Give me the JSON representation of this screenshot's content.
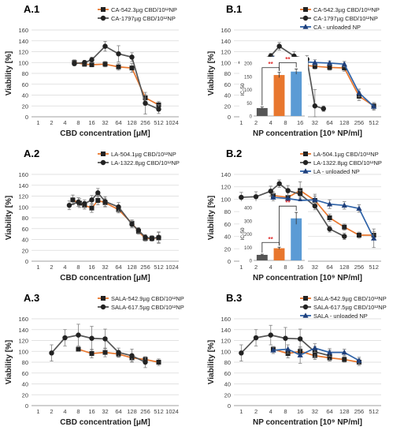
{
  "figure": {
    "colors": {
      "orange": "#E8772E",
      "gray": "#555555",
      "blue": "#2F63A8",
      "err": "#7f7f7f",
      "grid": "#d9d9d9",
      "bar_blue": "#5B9BD5"
    }
  },
  "panels": [
    {
      "id": "A.1",
      "label": "A.1",
      "xlabel": "CBD concentration [μM]",
      "ylabel": "Viability [%]",
      "legend_position": "top-right",
      "chart_data": {
        "type": "line",
        "title": "",
        "xlabel": "CBD concentration [μM]",
        "ylabel": "Viability [%]",
        "x_categories": [
          "1",
          "2",
          "4",
          "8",
          "16",
          "32",
          "64",
          "128",
          "256",
          "512",
          "1024"
        ],
        "ylim": [
          0,
          160
        ],
        "yticks": [
          0,
          20,
          40,
          60,
          80,
          100,
          120,
          140,
          160
        ],
        "x_scale": "log2",
        "series": [
          {
            "name": "CA-542.3µg CBD/10¹²NP",
            "color": "orange",
            "marker": "square",
            "x": [
              6.5,
              11,
              16,
              32,
              64,
              128,
              256,
              512
            ],
            "y": [
              100,
              97,
              96,
              97,
              92,
              90,
              35,
              22
            ],
            "err": [
              5,
              4,
              4,
              5,
              6,
              8,
              6,
              6
            ]
          },
          {
            "name": "CA-1797µg CBD/10¹²NP",
            "color": "gray",
            "marker": "circle",
            "x": [
              6.5,
              11,
              16,
              32,
              64,
              128,
              256,
              512
            ],
            "y": [
              98,
              100,
              105,
              130,
              116,
              110,
              25,
              14
            ],
            "err": [
              4,
              4,
              5,
              9,
              15,
              8,
              20,
              8
            ]
          }
        ]
      },
      "inset": null
    },
    {
      "id": "B.1",
      "label": "B.1",
      "xlabel": "NP concentration [10⁹ NP/ml]",
      "ylabel": "Viability [%]",
      "legend_position": "top-right",
      "chart_data": {
        "type": "line",
        "title": "",
        "xlabel": "NP concentration [10⁹ NP/ml]",
        "ylabel": "Viability [%]",
        "x_categories": [
          "1",
          "2",
          "4",
          "8",
          "16",
          "32",
          "64",
          "128",
          "256",
          "512"
        ],
        "ylim": [
          0,
          160
        ],
        "yticks": [
          0,
          20,
          40,
          60,
          80,
          100,
          120,
          140,
          160
        ],
        "x_scale": "log2",
        "series": [
          {
            "name": "CA-542.3µg CBD/10¹²NP",
            "color": "orange",
            "marker": "square",
            "x": [
              4.5,
              9,
              16,
              32,
              64,
              128,
              256,
              512
            ],
            "y": [
              97,
              95,
              96,
              93,
              91,
              90,
              38,
              20
            ],
            "err": [
              4,
              4,
              6,
              5,
              5,
              6,
              8,
              6
            ]
          },
          {
            "name": "CA-1797µg CBD/10¹²NP",
            "color": "gray",
            "marker": "circle",
            "x": [
              1,
              2,
              4,
              6,
              12,
              22,
              32,
              48
            ],
            "y": [
              100,
              103,
              112,
              130,
              112,
              106,
              20,
              15
            ],
            "err": [
              4,
              4,
              5,
              7,
              8,
              7,
              30,
              5
            ]
          },
          {
            "name": "CA - unloaded NP",
            "color": "blue",
            "marker": "triangle",
            "x": [
              4.5,
              9,
              16,
              32,
              64,
              128,
              256,
              512
            ],
            "y": [
              108,
              104,
              102,
              100,
              99,
              97,
              44,
              19
            ],
            "err": [
              4,
              4,
              5,
              5,
              4,
              5,
              7,
              7
            ]
          }
        ]
      },
      "inset": {
        "ylabel": "IC-50",
        "ylim": [
          0,
          200
        ],
        "yticks": [
          0,
          50,
          100,
          150,
          200
        ],
        "bars": [
          {
            "value": 30,
            "err": 4,
            "color": "gray"
          },
          {
            "value": 155,
            "err": 10,
            "color": "orange"
          },
          {
            "value": 168,
            "err": 10,
            "color": "bar_blue"
          }
        ],
        "sig": [
          "**",
          "**"
        ]
      }
    },
    {
      "id": "A.2",
      "label": "A.2",
      "xlabel": "CBD concentration [μM]",
      "ylabel": "Viability [%]",
      "legend_position": "top-right",
      "chart_data": {
        "type": "line",
        "title": "",
        "xlabel": "CBD concentration [μM]",
        "ylabel": "Viability [%]",
        "x_categories": [
          "1",
          "2",
          "4",
          "8",
          "16",
          "32",
          "64",
          "128",
          "256",
          "512",
          "1024"
        ],
        "ylim": [
          0,
          160
        ],
        "yticks": [
          0,
          20,
          40,
          60,
          80,
          100,
          120,
          140,
          160
        ],
        "x_scale": "log2",
        "series": [
          {
            "name": "LA-504.1µg CBD/10¹²NP",
            "color": "orange",
            "marker": "square",
            "x": [
              6,
              8.5,
              11,
              16,
              22,
              32,
              64,
              128,
              180,
              256,
              360,
              512
            ],
            "y": [
              113,
              107,
              103,
              98,
              112,
              108,
              95,
              70,
              55,
              42,
              42,
              43
            ],
            "err": [
              9,
              8,
              7,
              8,
              8,
              8,
              6,
              6,
              5,
              5,
              5,
              10
            ]
          },
          {
            "name": "LA-1322.8µg CBD/10¹²NP",
            "color": "gray",
            "marker": "circle",
            "x": [
              5,
              8,
              11,
              16,
              22,
              32,
              64,
              128,
              180,
              256,
              360,
              512
            ],
            "y": [
              103,
              109,
              106,
              113,
              126,
              110,
              100,
              68,
              57,
              44,
              42,
              44
            ],
            "err": [
              8,
              8,
              7,
              8,
              8,
              9,
              8,
              6,
              5,
              5,
              5,
              10
            ]
          }
        ]
      },
      "inset": null
    },
    {
      "id": "B.2",
      "label": "B.2",
      "xlabel": "NP concentration [10⁹ NP/ml]",
      "ylabel": "Viability [%]",
      "legend_position": "top-right",
      "chart_data": {
        "type": "line",
        "title": "",
        "xlabel": "NP concentration [10⁹ NP/ml]",
        "ylabel": "Viability [%]",
        "x_categories": [
          "1",
          "2",
          "4",
          "8",
          "16",
          "32",
          "64",
          "128",
          "256",
          "512"
        ],
        "ylim": [
          0,
          140
        ],
        "yticks": [
          0,
          20,
          40,
          60,
          80,
          100,
          120,
          140
        ],
        "x_scale": "log2",
        "series": [
          {
            "name": "LA-504.1µg CBD/10¹²NP",
            "color": "orange",
            "marker": "square",
            "x": [
              4.5,
              9,
              16,
              32,
              64,
              128,
              256,
              512
            ],
            "y": [
              106,
              103,
              114,
              98,
              70,
              55,
              42,
              42
            ],
            "err": [
              6,
              7,
              14,
              10,
              6,
              5,
              5,
              6
            ]
          },
          {
            "name": "LA-1322.8µg CBD/10¹²NP",
            "color": "gray",
            "marker": "circle",
            "x": [
              1,
              2,
              4,
              6,
              9,
              16,
              32,
              64,
              128
            ],
            "y": [
              103,
              104,
              113,
              125,
              114,
              108,
              89,
              52,
              40
            ],
            "err": [
              8,
              8,
              8,
              6,
              8,
              6,
              6,
              5,
              5
            ]
          },
          {
            "name": "LA - unloaded NP",
            "color": "blue",
            "marker": "triangle",
            "x": [
              4.5,
              9,
              16,
              32,
              64,
              128,
              256,
              512
            ],
            "y": [
              103,
              101,
              98,
              99,
              92,
              90,
              85,
              37
            ],
            "err": [
              6,
              5,
              7,
              6,
              7,
              6,
              6,
              15
            ]
          }
        ]
      },
      "inset": {
        "ylabel": "IC-50",
        "ylim": [
          0,
          400
        ],
        "yticks": [
          0,
          100,
          200,
          300,
          400
        ],
        "bars": [
          {
            "value": 42,
            "err": 5,
            "color": "gray"
          },
          {
            "value": 92,
            "err": 8,
            "color": "orange"
          },
          {
            "value": 318,
            "err": 45,
            "color": "bar_blue"
          }
        ],
        "sig": [
          "**",
          "**"
        ]
      }
    },
    {
      "id": "A.3",
      "label": "A.3",
      "xlabel": "CBD concentration [μM]",
      "ylabel": "Viability [%]",
      "legend_position": "top-right",
      "chart_data": {
        "type": "line",
        "title": "",
        "xlabel": "CBD concentration [μM]",
        "ylabel": "Viability [%]",
        "x_categories": [
          "1",
          "2",
          "4",
          "8",
          "16",
          "32",
          "64",
          "128",
          "256",
          "512",
          "1024"
        ],
        "ylim": [
          0,
          160
        ],
        "yticks": [
          0,
          20,
          40,
          60,
          80,
          100,
          120,
          140,
          160
        ],
        "x_scale": "log2",
        "series": [
          {
            "name": "SALA-542.9µg CBD/10¹²NP",
            "color": "orange",
            "marker": "square",
            "x": [
              8,
              16,
              32,
              64,
              128,
              256,
              512
            ],
            "y": [
              104,
              96,
              98,
              95,
              88,
              85,
              80
            ],
            "err": [
              3,
              8,
              8,
              6,
              7,
              5,
              6
            ]
          },
          {
            "name": "SALA-617.5µg CBD/10¹²NP",
            "color": "gray",
            "marker": "circle",
            "x": [
              2,
              4,
              8,
              16,
              32,
              64,
              128,
              256
            ],
            "y": [
              97,
              125,
              130,
              124,
              123,
              98,
              92,
              80
            ],
            "err": [
              15,
              15,
              20,
              22,
              18,
              8,
              12,
              10
            ]
          }
        ]
      },
      "inset": null
    },
    {
      "id": "B.3",
      "label": "B.3",
      "xlabel": "NP concentration [10⁹ NP/ml]",
      "ylabel": "Viability [%]",
      "legend_position": "top-right",
      "chart_data": {
        "type": "line",
        "title": "",
        "xlabel": "NP concentration [10⁹ NP/ml]",
        "ylabel": "Viability [%]",
        "x_categories": [
          "1",
          "2",
          "4",
          "8",
          "16",
          "32",
          "64",
          "128",
          "256",
          "512"
        ],
        "ylim": [
          0,
          160
        ],
        "yticks": [
          0,
          20,
          40,
          60,
          80,
          100,
          120,
          140,
          160
        ],
        "x_scale": "log2",
        "series": [
          {
            "name": "SALA-542.9µg CBD/10¹²NP",
            "color": "orange",
            "marker": "square",
            "x": [
              4.5,
              9,
              16,
              32,
              64,
              128,
              256
            ],
            "y": [
              104,
              96,
              100,
              92,
              88,
              85,
              80
            ],
            "err": [
              5,
              8,
              8,
              7,
              6,
              5,
              6
            ]
          },
          {
            "name": "SALA-617.5µg CBD/10¹²NP",
            "color": "gray",
            "marker": "circle",
            "x": [
              1,
              2,
              4,
              8,
              16,
              32,
              64
            ],
            "y": [
              97,
              125,
              130,
              124,
              123,
              99,
              92
            ],
            "err": [
              15,
              15,
              18,
              20,
              18,
              10,
              10
            ]
          },
          {
            "name": "SALA - unloaded NP",
            "color": "blue",
            "marker": "triangle",
            "x": [
              4.5,
              9,
              16,
              32,
              64,
              128,
              256
            ],
            "y": [
              102,
              104,
              93,
              106,
              98,
              98,
              83
            ],
            "err": [
              6,
              8,
              15,
              8,
              7,
              6,
              6
            ]
          }
        ]
      },
      "inset": null
    }
  ]
}
